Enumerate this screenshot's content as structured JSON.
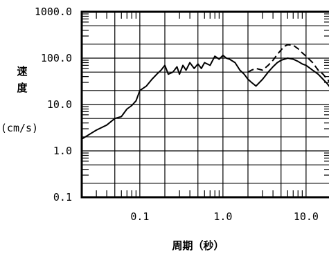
{
  "chart_data": {
    "type": "line",
    "x_scale": "log",
    "y_scale": "log",
    "xlim": [
      0.02,
      20
    ],
    "ylim": [
      0.1,
      1000
    ],
    "xlabel": "周期（秒）",
    "ylabel_lines": [
      "速",
      "度"
    ],
    "ylabel_unit": "(cm/s)",
    "x_ticks": [
      {
        "value": 0.1,
        "label": "0.1"
      },
      {
        "value": 1.0,
        "label": "1.0"
      },
      {
        "value": 10.0,
        "label": "10.0"
      }
    ],
    "y_ticks": [
      {
        "value": 1000,
        "label": "1000.0"
      },
      {
        "value": 100,
        "label": "100.0"
      },
      {
        "value": 10,
        "label": "10.0"
      },
      {
        "value": 1,
        "label": "1.0"
      },
      {
        "value": 0.1,
        "label": "0.1"
      }
    ],
    "grid": true,
    "series": [
      {
        "style": "solid",
        "color": "#000000",
        "x": [
          0.02,
          0.025,
          0.03,
          0.04,
          0.05,
          0.06,
          0.07,
          0.08,
          0.09,
          0.1,
          0.12,
          0.14,
          0.16,
          0.18,
          0.2,
          0.22,
          0.25,
          0.28,
          0.3,
          0.33,
          0.36,
          0.4,
          0.45,
          0.5,
          0.55,
          0.6,
          0.7,
          0.8,
          0.9,
          1.0,
          1.1,
          1.2,
          1.4,
          1.6,
          1.8,
          2.0,
          2.2,
          2.5,
          3.0,
          3.5,
          4.0,
          4.5,
          5.0,
          5.5,
          6.0,
          7.0,
          8.0,
          9.0,
          10.0,
          12.0,
          14.0,
          16.0,
          18.0,
          20.0
        ],
        "y": [
          1.8,
          2.3,
          2.8,
          3.6,
          5.0,
          5.5,
          8.0,
          9.5,
          12,
          20,
          25,
          35,
          45,
          55,
          70,
          45,
          50,
          65,
          45,
          70,
          55,
          80,
          60,
          75,
          60,
          80,
          70,
          110,
          95,
          115,
          100,
          95,
          80,
          55,
          45,
          35,
          30,
          25,
          35,
          50,
          65,
          80,
          90,
          95,
          100,
          95,
          85,
          75,
          70,
          55,
          45,
          35,
          28,
          22
        ]
      },
      {
        "style": "dashed",
        "color": "#000000",
        "x": [
          2.0,
          2.2,
          2.5,
          3.0,
          3.5,
          4.0,
          4.5,
          5.0,
          5.5,
          6.0,
          7.0,
          8.0,
          9.0,
          10.0,
          12.0,
          14.0,
          16.0,
          18.0,
          20.0
        ],
        "y": [
          50,
          55,
          60,
          55,
          70,
          90,
          120,
          150,
          180,
          195,
          190,
          160,
          130,
          110,
          80,
          55,
          45,
          35,
          28
        ]
      }
    ]
  }
}
